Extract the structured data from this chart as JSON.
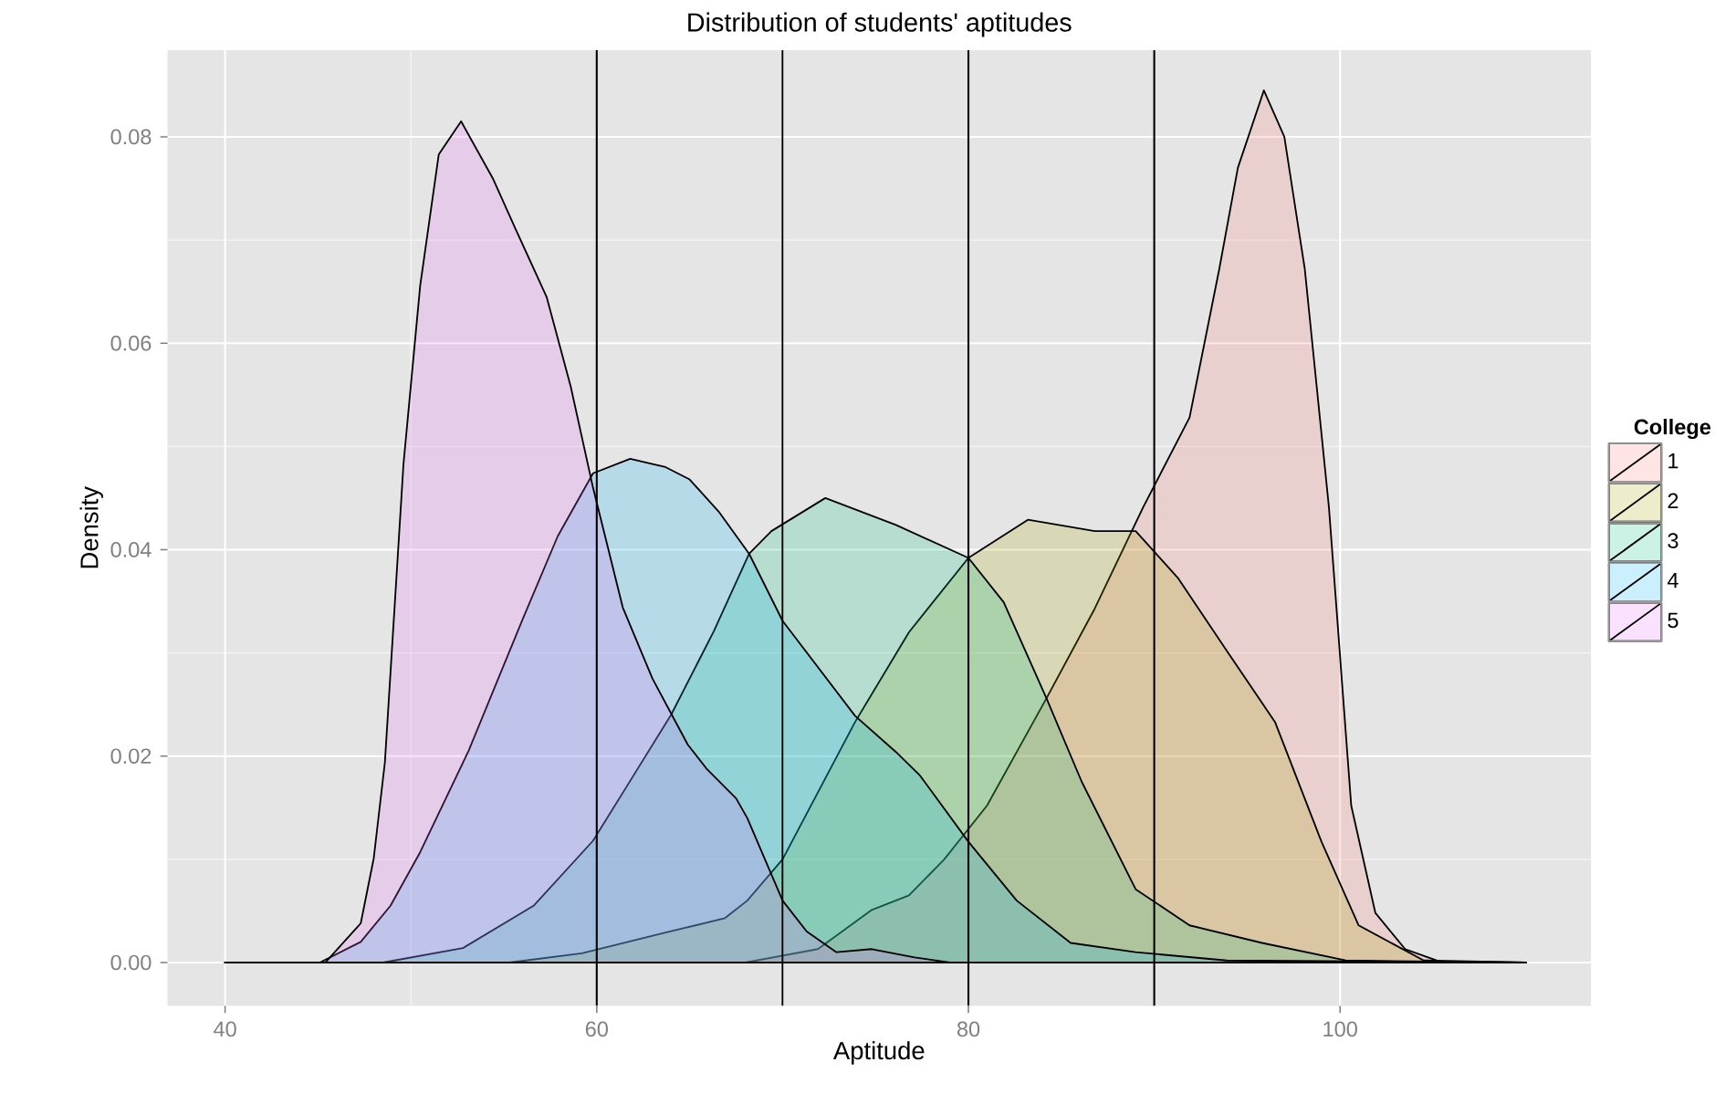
{
  "chart_data": {
    "type": "area",
    "title": "Distribution of students' aptitudes",
    "xlabel": "Aptitude",
    "ylabel": "Density",
    "legend_title": "College",
    "legend": "right",
    "grid": true,
    "xlim": [
      36.9,
      113.5
    ],
    "ylim": [
      -0.0042,
      0.0884
    ],
    "xticks": [
      40,
      60,
      80,
      100
    ],
    "yticks": [
      {
        "value": 0,
        "label": "0.00"
      },
      0.02,
      0.04,
      0.06,
      0.08
    ],
    "ref_lines": [
      {
        "axis": "x",
        "value": 60,
        "color": "#000000"
      },
      {
        "axis": "x",
        "value": 70,
        "color": "#000000"
      },
      {
        "axis": "x",
        "value": 80,
        "color": "#000000"
      },
      {
        "axis": "x",
        "value": 90,
        "color": "#000000"
      }
    ],
    "series": [
      {
        "name": "1",
        "color": "#F8766D",
        "x": [
          40,
          68,
          71.9,
          74.8,
          76.8,
          78.7,
          81,
          84.2,
          86.8,
          89.4,
          91.9,
          93.5,
          94.5,
          95.9,
          97,
          98.1,
          99.4,
          100.6,
          101.9,
          103.5,
          105.5,
          110
        ],
        "values": [
          0,
          0,
          0.0013,
          0.0051,
          0.0065,
          0.01,
          0.0152,
          0.0256,
          0.0343,
          0.0441,
          0.0528,
          0.0672,
          0.077,
          0.0845,
          0.08,
          0.0672,
          0.0441,
          0.0152,
          0.0048,
          0.0013,
          0,
          0
        ]
      },
      {
        "name": "2",
        "color": "#A3A500",
        "x": [
          40,
          55.3,
          59.2,
          63.7,
          66.9,
          68.1,
          70,
          73.9,
          76.8,
          80,
          83.2,
          86.8,
          89,
          91.3,
          93.9,
          96.5,
          99,
          101,
          104.5,
          110
        ],
        "values": [
          0,
          0,
          0.0009,
          0.0029,
          0.0043,
          0.006,
          0.01,
          0.0233,
          0.032,
          0.0392,
          0.0429,
          0.0418,
          0.0418,
          0.0372,
          0.0302,
          0.0233,
          0.0117,
          0.0036,
          0.0002,
          0
        ]
      },
      {
        "name": "3",
        "color": "#00BF7D",
        "x": [
          40,
          48.5,
          52.8,
          56.6,
          59.8,
          61.8,
          64,
          66.3,
          68.2,
          69.4,
          72.3,
          76.1,
          80,
          81.9,
          84.2,
          86.1,
          89,
          91.9,
          95.8,
          100.3,
          110
        ],
        "values": [
          0,
          0,
          0.0014,
          0.0055,
          0.0118,
          0.0176,
          0.024,
          0.0321,
          0.0396,
          0.0418,
          0.045,
          0.0424,
          0.0392,
          0.0349,
          0.0256,
          0.0175,
          0.0071,
          0.0036,
          0.0019,
          0.0002,
          0
        ]
      },
      {
        "name": "4",
        "color": "#00B0F6",
        "x": [
          40,
          45.1,
          47.3,
          48.9,
          50.5,
          53.1,
          56,
          57.9,
          59.8,
          61.8,
          63.7,
          65,
          66.6,
          68.2,
          70,
          73.9,
          76.1,
          77.4,
          80,
          82.6,
          85.5,
          89,
          93.9,
          110
        ],
        "values": [
          0,
          0,
          0.002,
          0.0055,
          0.0107,
          0.0205,
          0.0332,
          0.0413,
          0.0474,
          0.0488,
          0.048,
          0.0468,
          0.0436,
          0.0396,
          0.0331,
          0.0239,
          0.0204,
          0.0181,
          0.0117,
          0.006,
          0.0019,
          0.001,
          0.0002,
          0
        ]
      },
      {
        "name": "5",
        "color": "#E76BF3",
        "x": [
          40,
          45.4,
          47.3,
          48,
          48.6,
          49.2,
          49.6,
          50.5,
          51.5,
          52.7,
          54.4,
          55.7,
          57.3,
          58.6,
          59.8,
          61.4,
          63,
          64.9,
          65.9,
          67.5,
          68.1,
          70,
          71.3,
          72.9,
          74.8,
          77.1,
          79,
          110
        ],
        "values": [
          0,
          0,
          0.0038,
          0.0101,
          0.0194,
          0.0367,
          0.0483,
          0.0656,
          0.0783,
          0.0815,
          0.076,
          0.0708,
          0.0645,
          0.0558,
          0.046,
          0.0344,
          0.0275,
          0.0211,
          0.0188,
          0.0159,
          0.014,
          0.006,
          0.003,
          0.001,
          0.0013,
          0.0005,
          0,
          0
        ]
      }
    ]
  }
}
